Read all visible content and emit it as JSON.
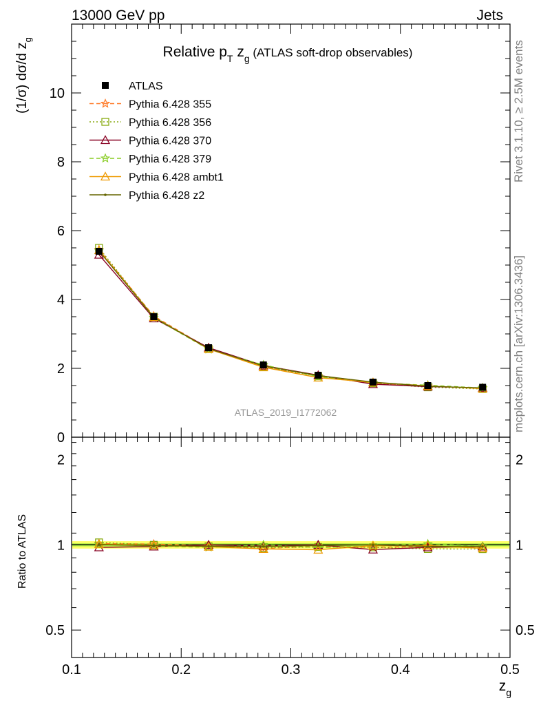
{
  "header": {
    "left": "13000 GeV pp",
    "right": "Jets"
  },
  "title": {
    "pre": "Relative p",
    "sub_T": "T",
    "mid": " z",
    "sub_g": "g",
    "post": " (ATLAS soft-drop observables)"
  },
  "side_labels": {
    "rivet": "Rivet 3.1.10, ≥ 2.5M events",
    "mcplots": "mcplots.cern.ch [arXiv:1306.3436]"
  },
  "analysis_label": "ATLAS_2019_I1772062",
  "colors": {
    "band": "#ffff66",
    "band_inner": "#aaee44",
    "axis": "#000000",
    "side_text": "#808080"
  },
  "chart_data": [
    {
      "type": "line",
      "ylabel": "(1/σ) dσ/d z_g",
      "ylim": [
        0,
        12
      ],
      "y_ticks": [
        "0",
        "2",
        "4",
        "6",
        "8",
        "10"
      ],
      "x": [
        0.125,
        0.175,
        0.225,
        0.275,
        0.325,
        0.375,
        0.425,
        0.475
      ],
      "series": [
        {
          "name": "ATLAS",
          "marker": "filled-square",
          "color": "#000000",
          "values": [
            5.4,
            3.5,
            2.6,
            2.1,
            1.8,
            1.6,
            1.5,
            1.45
          ]
        },
        {
          "name": "Pythia 6.428 355",
          "marker": "star",
          "color": "#ff7722",
          "dash": "dashed",
          "values": [
            5.45,
            3.52,
            2.58,
            2.04,
            1.78,
            1.57,
            1.48,
            1.42
          ]
        },
        {
          "name": "Pythia 6.428 356",
          "marker": "open-square",
          "color": "#88aa11",
          "dash": "dotted",
          "values": [
            5.5,
            3.5,
            2.57,
            2.05,
            1.77,
            1.57,
            1.45,
            1.4
          ]
        },
        {
          "name": "Pythia 6.428 370",
          "marker": "open-triangle",
          "color": "#880022",
          "dash": "solid",
          "values": [
            5.3,
            3.45,
            2.6,
            2.08,
            1.8,
            1.54,
            1.47,
            1.43
          ]
        },
        {
          "name": "Pythia 6.428 379",
          "marker": "star",
          "color": "#88cc22",
          "dash": "dashed",
          "values": [
            5.42,
            3.47,
            2.55,
            2.1,
            1.76,
            1.58,
            1.51,
            1.43
          ]
        },
        {
          "name": "Pythia 6.428 ambt1",
          "marker": "open-triangle",
          "color": "#ee9900",
          "dash": "solid",
          "values": [
            5.43,
            3.49,
            2.56,
            2.03,
            1.73,
            1.59,
            1.49,
            1.41
          ]
        },
        {
          "name": "Pythia 6.428 z2",
          "marker": "dot",
          "color": "#666600",
          "dash": "solid",
          "values": [
            5.41,
            3.48,
            2.57,
            2.07,
            1.79,
            1.6,
            1.48,
            1.43
          ]
        }
      ]
    },
    {
      "type": "line",
      "ylabel": "Ratio to ATLAS",
      "xlabel": "z_g",
      "yscale": "log",
      "ylim": [
        0.4,
        2.4
      ],
      "y_ticks": [
        "0.5",
        "1",
        "2"
      ],
      "x_ticks": [
        "0.1",
        "0.2",
        "0.3",
        "0.4",
        "0.5"
      ],
      "xlim": [
        0.1,
        0.5
      ],
      "x": [
        0.125,
        0.175,
        0.225,
        0.275,
        0.325,
        0.375,
        0.425,
        0.475
      ],
      "series": [
        {
          "name": "Pythia 6.428 355",
          "values": [
            1.01,
            1.006,
            0.992,
            0.97,
            0.99,
            0.98,
            0.987,
            0.98
          ]
        },
        {
          "name": "Pythia 6.428 356",
          "values": [
            1.02,
            1.0,
            0.988,
            0.976,
            0.983,
            0.98,
            0.967,
            0.966
          ]
        },
        {
          "name": "Pythia 6.428 370",
          "values": [
            0.98,
            0.986,
            1.0,
            0.99,
            1.0,
            0.962,
            0.98,
            0.986
          ]
        },
        {
          "name": "Pythia 6.428 379",
          "values": [
            1.004,
            0.991,
            0.98,
            1.0,
            0.978,
            0.99,
            1.007,
            0.986
          ]
        },
        {
          "name": "Pythia 6.428 ambt1",
          "values": [
            1.006,
            0.997,
            0.985,
            0.967,
            0.961,
            0.994,
            0.993,
            0.972
          ]
        },
        {
          "name": "Pythia 6.428 z2",
          "values": [
            1.002,
            0.994,
            0.988,
            0.986,
            0.994,
            1.0,
            0.987,
            0.986
          ]
        }
      ]
    }
  ]
}
